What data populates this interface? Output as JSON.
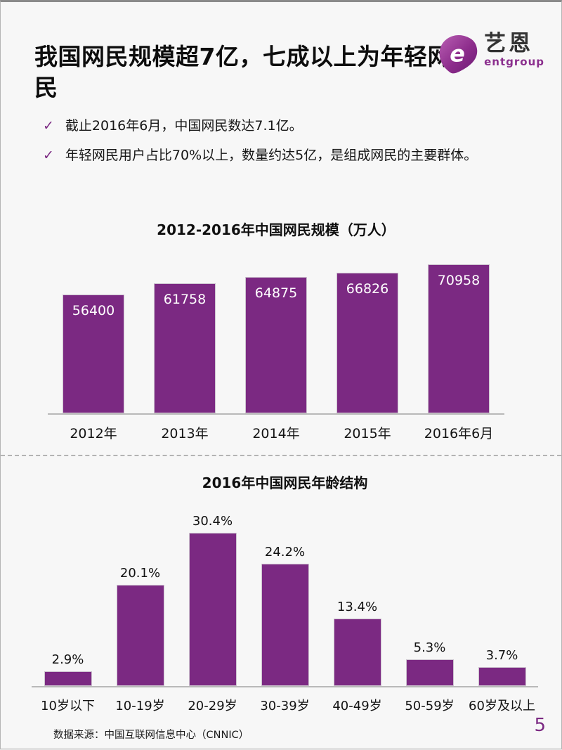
{
  "page": {
    "title": "我国网民规模超7亿，七成以上为年轻网民",
    "source": "数据来源：中国互联网信息中心（CNNIC）",
    "page_number": "5"
  },
  "logo": {
    "icon": "entgroup-e-icon",
    "name_cn": "艺恩",
    "name_en": "entgroup"
  },
  "bullets": [
    "截止2016年6月，中国网民数达7.1亿。",
    "年轻网民用户占比70%以上，数量约达5亿，是组成网民的主要群体。"
  ],
  "colors": {
    "accent_purple": "#7B2982",
    "axis_gray": "#b9b9b9",
    "background": "#f7f7f7"
  },
  "chart_data": [
    {
      "type": "bar",
      "title": "2012-2016年中国网民规模（万人）",
      "categories": [
        "2012年",
        "2013年",
        "2014年",
        "2015年",
        "2016年6月"
      ],
      "values": [
        56400,
        61758,
        64875,
        66826,
        70958
      ],
      "value_labels": [
        "56400",
        "61758",
        "64875",
        "66826",
        "70958"
      ],
      "label_position": "inside-top",
      "bar_color": "#7B2982",
      "ylabel": "万人",
      "ylim": [
        0,
        80000
      ],
      "grid": false,
      "y_axis_visible": false,
      "legend": "none"
    },
    {
      "type": "bar",
      "title": "2016年中国网民年龄结构",
      "categories": [
        "10岁以下",
        "10-19岁",
        "20-29岁",
        "30-39岁",
        "40-49岁",
        "50-59岁",
        "60岁及以上"
      ],
      "values": [
        2.9,
        20.1,
        30.4,
        24.2,
        13.4,
        5.3,
        3.7
      ],
      "value_labels": [
        "2.9%",
        "20.1%",
        "30.4%",
        "24.2%",
        "13.4%",
        "5.3%",
        "3.7%"
      ],
      "unit": "%",
      "label_position": "above",
      "bar_color": "#7B2982",
      "ylim": [
        0,
        32
      ],
      "grid": false,
      "y_axis_visible": false,
      "legend": "none"
    }
  ]
}
